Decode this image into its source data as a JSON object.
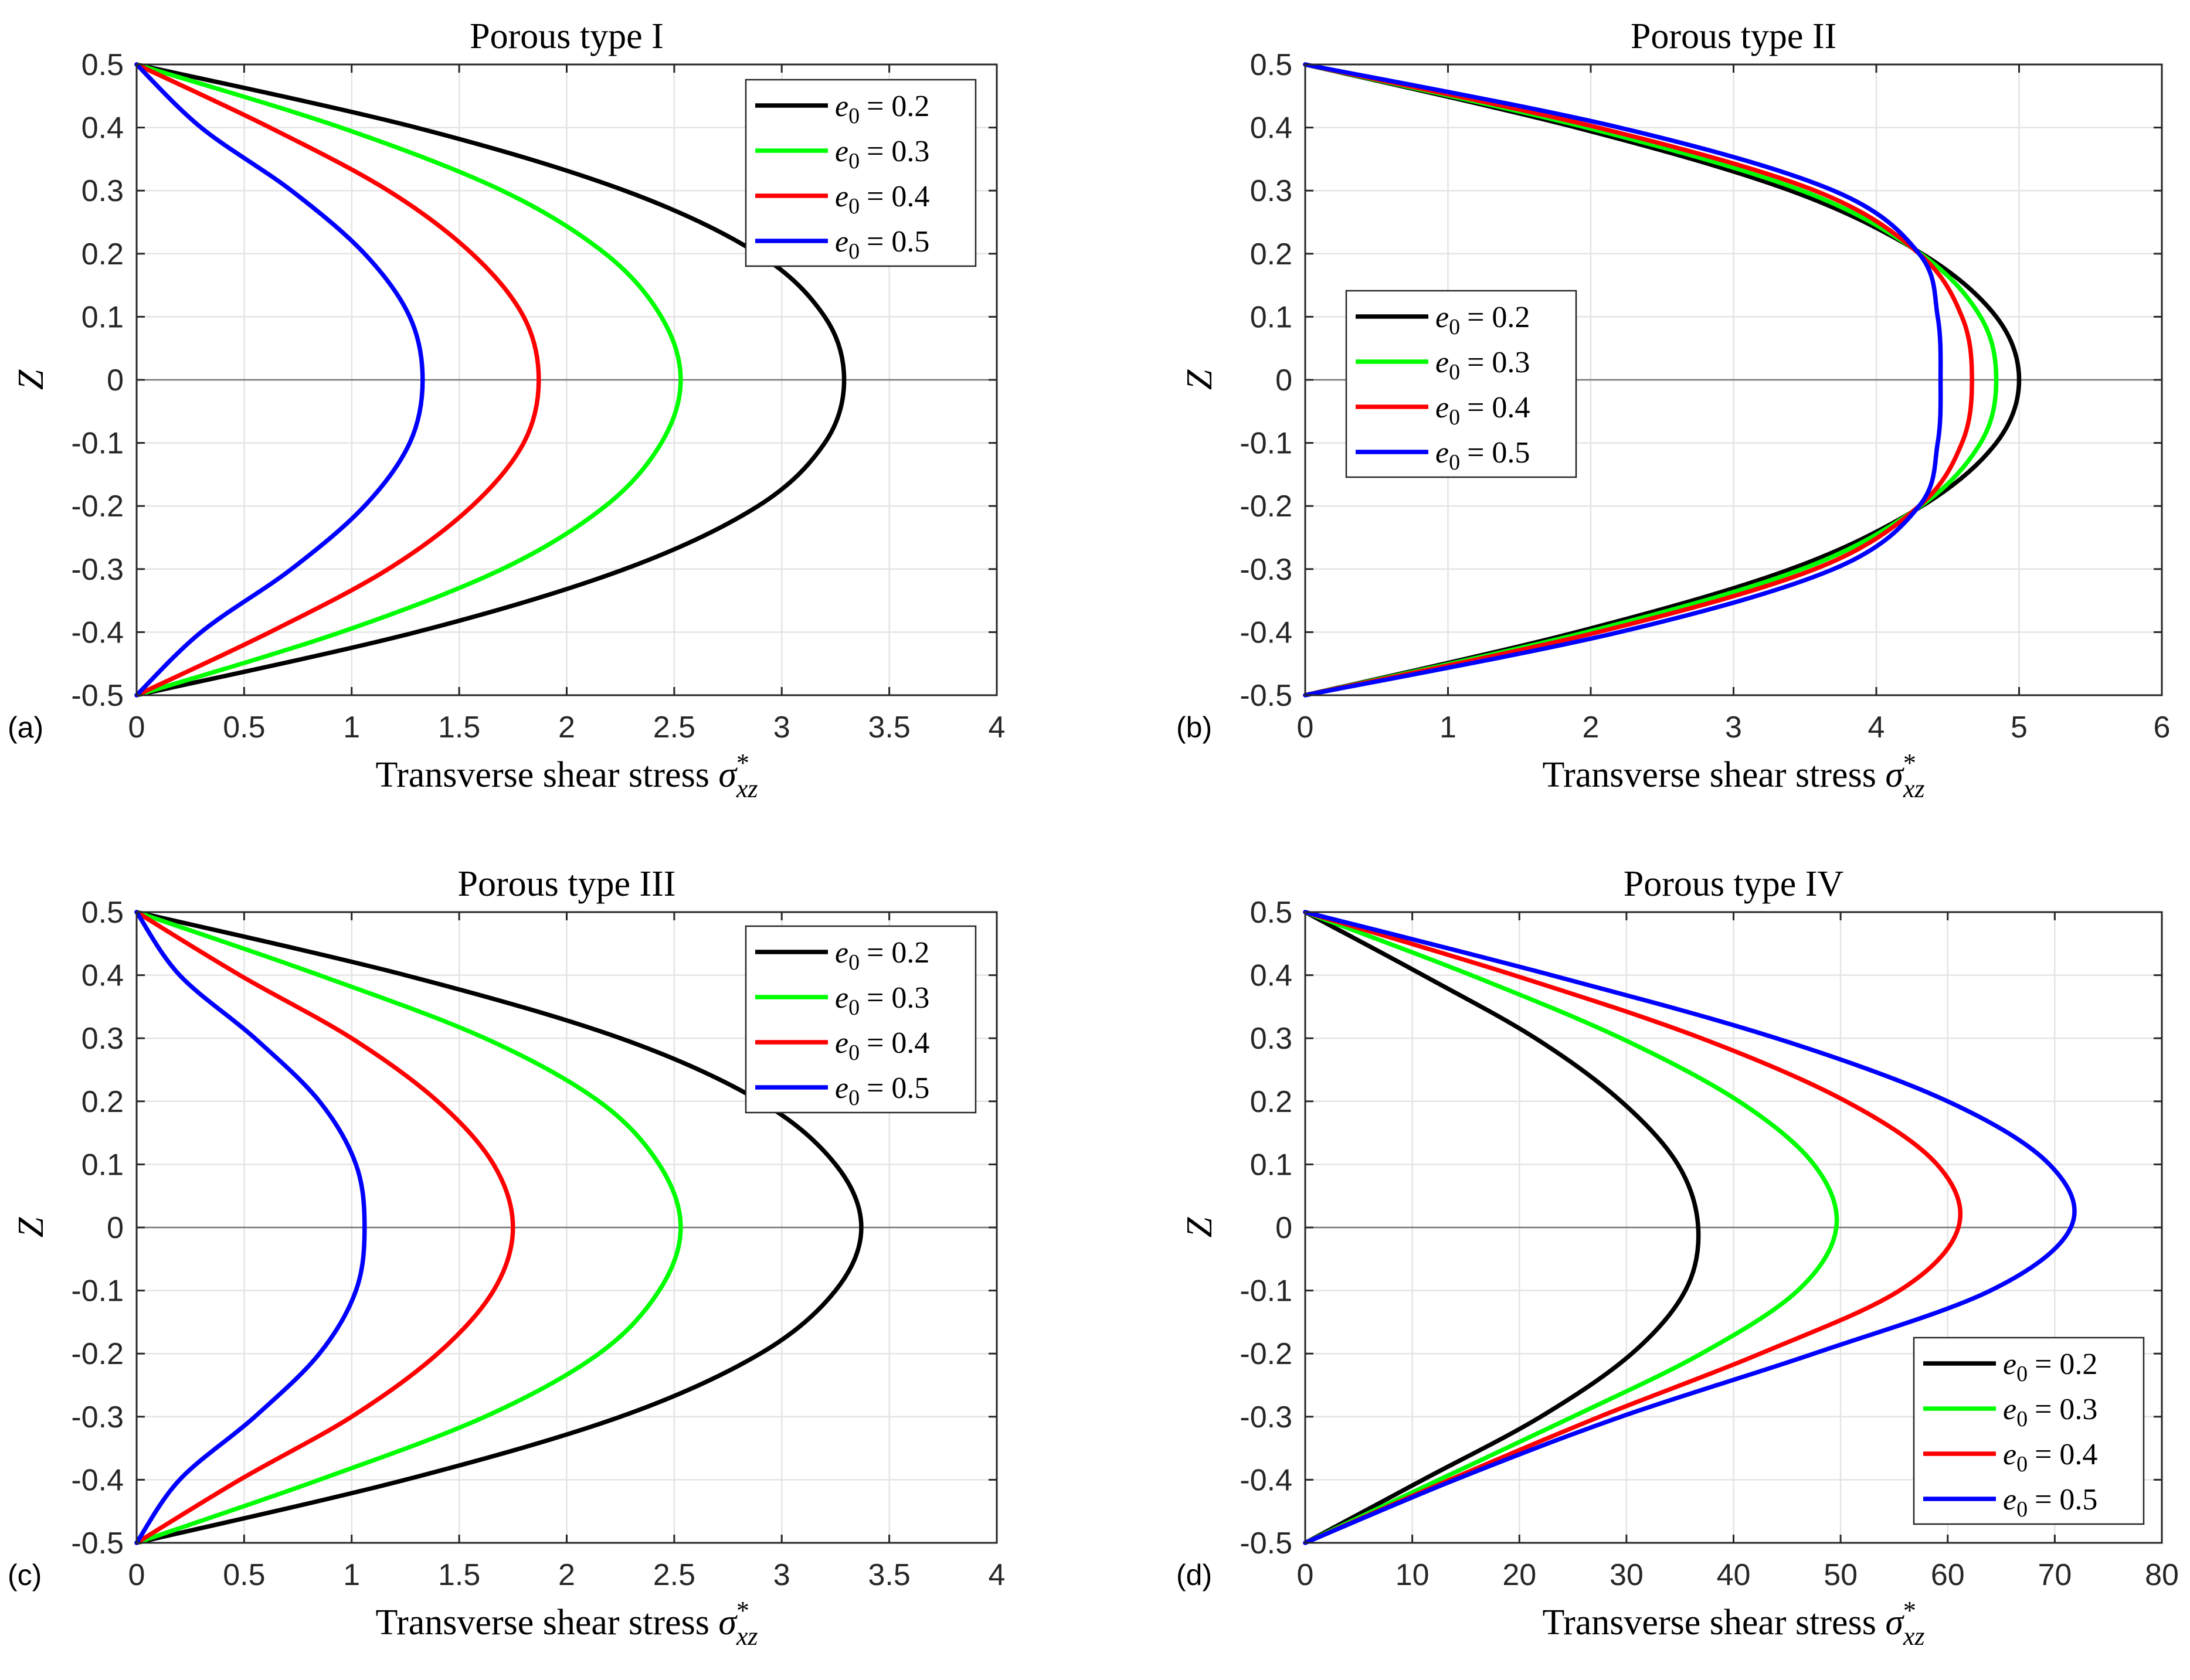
{
  "chart_data": [
    {
      "type": "line",
      "panel_label": "(a)",
      "title": "Porous type I",
      "xlabel": "Transverse shear stress",
      "xlabel_symbol": "σ",
      "xlabel_sup": "*",
      "xlabel_sub": "xz",
      "ylabel": "Z",
      "xlim": [
        0,
        4
      ],
      "ylim": [
        -0.5,
        0.5
      ],
      "xticks": [
        "0",
        "0.5",
        "1",
        "1.5",
        "2",
        "2.5",
        "3",
        "3.5",
        "4"
      ],
      "yticks": [
        "-0.5",
        "-0.4",
        "-0.3",
        "-0.2",
        "-0.1",
        "0",
        "0.1",
        "0.2",
        "0.3",
        "0.4",
        "0.5"
      ],
      "grid": true,
      "legend_position": "top-right",
      "series": [
        {
          "name": "e0 = 0.2",
          "label_var": "e",
          "label_sub": "0",
          "label_value": "= 0.2",
          "color": "#000000",
          "x": [
            0,
            1.3,
            2.27,
            2.89,
            3.2,
            3.29,
            3.2,
            2.89,
            2.27,
            1.3,
            0
          ],
          "z": [
            0.5,
            0.4,
            0.3,
            0.2,
            0.1,
            0,
            -0.1,
            -0.2,
            -0.3,
            -0.4,
            -0.5
          ]
        },
        {
          "name": "e0 = 0.3",
          "label_var": "e",
          "label_sub": "0",
          "label_value": "= 0.3",
          "color": "#00ff00",
          "x": [
            0,
            0.95,
            1.7,
            2.18,
            2.44,
            2.53,
            2.44,
            2.18,
            1.7,
            0.95,
            0
          ],
          "z": [
            0.5,
            0.4,
            0.3,
            0.2,
            0.1,
            0,
            -0.1,
            -0.2,
            -0.3,
            -0.4,
            -0.5
          ]
        },
        {
          "name": "e0 = 0.4",
          "label_var": "e",
          "label_sub": "0",
          "label_value": "= 0.4",
          "color": "#ff0000",
          "x": [
            0,
            0.62,
            1.17,
            1.56,
            1.8,
            1.87,
            1.8,
            1.56,
            1.17,
            0.62,
            0
          ],
          "z": [
            0.5,
            0.4,
            0.3,
            0.2,
            0.1,
            0,
            -0.1,
            -0.2,
            -0.3,
            -0.4,
            -0.5
          ]
        },
        {
          "name": "e0 = 0.5",
          "label_var": "e",
          "label_sub": "0",
          "label_value": "= 0.5",
          "color": "#0000ff",
          "x": [
            0,
            0.3,
            0.72,
            1.06,
            1.27,
            1.33,
            1.27,
            1.06,
            0.72,
            0.3,
            0
          ],
          "z": [
            0.5,
            0.4,
            0.3,
            0.2,
            0.1,
            0,
            -0.1,
            -0.2,
            -0.3,
            -0.4,
            -0.5
          ]
        }
      ]
    },
    {
      "type": "line",
      "panel_label": "(b)",
      "title": "Porous type II",
      "xlabel": "Transverse shear stress",
      "xlabel_symbol": "σ",
      "xlabel_sup": "*",
      "xlabel_sub": "xz",
      "ylabel": "Z",
      "xlim": [
        0,
        6
      ],
      "ylim": [
        -0.5,
        0.5
      ],
      "xticks": [
        "0",
        "1",
        "2",
        "3",
        "4",
        "5",
        "6"
      ],
      "yticks": [
        "-0.5",
        "-0.4",
        "-0.3",
        "-0.2",
        "-0.1",
        "0",
        "0.1",
        "0.2",
        "0.3",
        "0.4",
        "0.5"
      ],
      "grid": true,
      "legend_position": "center-left",
      "series": [
        {
          "name": "e0 = 0.2",
          "label_var": "e",
          "label_sub": "0",
          "label_value": "= 0.2",
          "color": "#000000",
          "x": [
            0,
            1.9,
            3.4,
            4.32,
            4.84,
            5.0,
            4.84,
            4.32,
            3.4,
            1.9,
            0
          ],
          "z": [
            0.5,
            0.4,
            0.3,
            0.2,
            0.1,
            0,
            -0.1,
            -0.2,
            -0.3,
            -0.4,
            -0.5
          ]
        },
        {
          "name": "e0 = 0.3",
          "label_var": "e",
          "label_sub": "0",
          "label_value": "= 0.3",
          "color": "#00ff00",
          "x": [
            0,
            1.97,
            3.48,
            4.31,
            4.73,
            4.84,
            4.73,
            4.31,
            3.48,
            1.97,
            0
          ],
          "z": [
            0.5,
            0.4,
            0.3,
            0.2,
            0.1,
            0,
            -0.1,
            -0.2,
            -0.3,
            -0.4,
            -0.5
          ]
        },
        {
          "name": "e0 = 0.4",
          "label_var": "e",
          "label_sub": "0",
          "label_value": "= 0.4",
          "color": "#ff0000",
          "x": [
            0,
            2.05,
            3.57,
            4.3,
            4.6,
            4.67,
            4.6,
            4.3,
            3.57,
            2.05,
            0
          ],
          "z": [
            0.5,
            0.4,
            0.3,
            0.2,
            0.1,
            0,
            -0.1,
            -0.2,
            -0.3,
            -0.4,
            -0.5
          ]
        },
        {
          "name": "e0 = 0.5",
          "label_var": "e",
          "label_sub": "0",
          "label_value": "= 0.5",
          "color": "#0000ff",
          "x": [
            0,
            2.2,
            3.7,
            4.3,
            4.43,
            4.45,
            4.43,
            4.3,
            3.7,
            2.2,
            0
          ],
          "z": [
            0.5,
            0.4,
            0.3,
            0.2,
            0.1,
            0,
            -0.1,
            -0.2,
            -0.3,
            -0.4,
            -0.5
          ]
        }
      ]
    },
    {
      "type": "line",
      "panel_label": "(c)",
      "title": "Porous type III",
      "xlabel": "Transverse shear stress",
      "xlabel_symbol": "σ",
      "xlabel_sup": "*",
      "xlabel_sub": "xz",
      "ylabel": "Z",
      "xlim": [
        0,
        4
      ],
      "ylim": [
        -0.5,
        0.5
      ],
      "xticks": [
        "0",
        "0.5",
        "1",
        "1.5",
        "2",
        "2.5",
        "3",
        "3.5",
        "4"
      ],
      "yticks": [
        "-0.5",
        "-0.4",
        "-0.3",
        "-0.2",
        "-0.1",
        "0",
        "0.1",
        "0.2",
        "0.3",
        "0.4",
        "0.5"
      ],
      "grid": true,
      "legend_position": "top-right",
      "series": [
        {
          "name": "e0 = 0.2",
          "label_var": "e",
          "label_sub": "0",
          "label_value": "= 0.2",
          "color": "#000000",
          "x": [
            0,
            1.25,
            2.25,
            2.9,
            3.25,
            3.37,
            3.25,
            2.9,
            2.25,
            1.25,
            0
          ],
          "z": [
            0.5,
            0.4,
            0.3,
            0.2,
            0.1,
            0,
            -0.1,
            -0.2,
            -0.3,
            -0.4,
            -0.5
          ]
        },
        {
          "name": "e0 = 0.3",
          "label_var": "e",
          "label_sub": "0",
          "label_value": "= 0.3",
          "color": "#00ff00",
          "x": [
            0,
            0.85,
            1.62,
            2.15,
            2.43,
            2.53,
            2.43,
            2.15,
            1.62,
            0.85,
            0
          ],
          "z": [
            0.5,
            0.4,
            0.3,
            0.2,
            0.1,
            0,
            -0.1,
            -0.2,
            -0.3,
            -0.4,
            -0.5
          ]
        },
        {
          "name": "e0 = 0.4",
          "label_var": "e",
          "label_sub": "0",
          "label_value": "= 0.4",
          "color": "#ff0000",
          "x": [
            0,
            0.48,
            1.0,
            1.4,
            1.66,
            1.75,
            1.66,
            1.4,
            1.0,
            0.48,
            0
          ],
          "z": [
            0.5,
            0.4,
            0.3,
            0.2,
            0.1,
            0,
            -0.1,
            -0.2,
            -0.3,
            -0.4,
            -0.5
          ]
        },
        {
          "name": "e0 = 0.5",
          "label_var": "e",
          "label_sub": "0",
          "label_value": "= 0.5",
          "color": "#0000ff",
          "x": [
            0,
            0.2,
            0.55,
            0.85,
            1.02,
            1.06,
            1.02,
            0.85,
            0.55,
            0.2,
            0
          ],
          "z": [
            0.5,
            0.4,
            0.3,
            0.2,
            0.1,
            0,
            -0.1,
            -0.2,
            -0.3,
            -0.4,
            -0.5
          ]
        }
      ]
    },
    {
      "type": "line",
      "panel_label": "(d)",
      "title": "Porous type IV",
      "xlabel": "Transverse shear stress",
      "xlabel_symbol": "σ",
      "xlabel_sup": "*",
      "xlabel_sub": "xz",
      "ylabel": "Z",
      "xlim": [
        0,
        80
      ],
      "ylim": [
        -0.5,
        0.5
      ],
      "xticks": [
        "0",
        "10",
        "20",
        "30",
        "40",
        "50",
        "60",
        "70",
        "80"
      ],
      "yticks": [
        "-0.5",
        "-0.4",
        "-0.3",
        "-0.2",
        "-0.1",
        "0",
        "0.1",
        "0.2",
        "0.3",
        "0.4",
        "0.5"
      ],
      "grid": true,
      "legend_position": "bottom-right",
      "series": [
        {
          "name": "e0 = 0.2",
          "label_var": "e",
          "label_sub": "0",
          "label_value": "= 0.2",
          "color": "#000000",
          "x": [
            0,
            11.0,
            21.5,
            29.5,
            34.8,
            36.7,
            35.5,
            30.5,
            22.0,
            11.0,
            0
          ],
          "z": [
            0.5,
            0.4,
            0.3,
            0.2,
            0.1,
            0,
            -0.1,
            -0.2,
            -0.3,
            -0.4,
            -0.5
          ]
        },
        {
          "name": "e0 = 0.3",
          "label_var": "e",
          "label_sub": "0",
          "label_value": "= 0.3",
          "color": "#00ff00",
          "x": [
            0,
            15.5,
            29.5,
            40.5,
            47.5,
            49.6,
            46.0,
            37.0,
            25.0,
            12.5,
            0
          ],
          "z": [
            0.5,
            0.4,
            0.3,
            0.2,
            0.1,
            0,
            -0.1,
            -0.2,
            -0.3,
            -0.4,
            -0.5
          ]
        },
        {
          "name": "e0 = 0.4",
          "label_var": "e",
          "label_sub": "0",
          "label_value": "= 0.4",
          "color": "#ff0000",
          "x": [
            0,
            19.5,
            37.0,
            50.5,
            59.0,
            61.0,
            55.5,
            42.5,
            27.5,
            13.5,
            0
          ],
          "z": [
            0.5,
            0.4,
            0.3,
            0.2,
            0.1,
            0,
            -0.1,
            -0.2,
            -0.3,
            -0.4,
            -0.5
          ]
        },
        {
          "name": "e0 = 0.5",
          "label_var": "e",
          "label_sub": "0",
          "label_value": "= 0.5",
          "color": "#0000ff",
          "x": [
            0,
            23.0,
            44.0,
            60.0,
            69.5,
            71.5,
            64.0,
            47.5,
            29.5,
            14.0,
            0
          ],
          "z": [
            0.5,
            0.4,
            0.3,
            0.2,
            0.1,
            0,
            -0.1,
            -0.2,
            -0.3,
            -0.4,
            -0.5
          ]
        }
      ]
    }
  ]
}
